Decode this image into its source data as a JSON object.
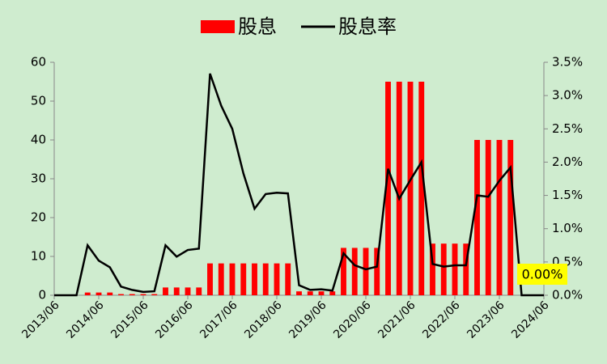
{
  "chart_data": {
    "type": "bar-line",
    "categories": [
      "2013/06",
      null,
      null,
      null,
      "2014/06",
      null,
      null,
      null,
      "2015/06",
      null,
      null,
      null,
      "2016/06",
      null,
      null,
      null,
      "2017/06",
      null,
      null,
      null,
      "2018/06",
      null,
      null,
      null,
      "2019/06",
      null,
      null,
      null,
      "2020/06",
      null,
      null,
      null,
      "2021/06",
      null,
      null,
      null,
      "2022/06",
      null,
      null,
      null,
      "2023/06",
      null,
      null,
      null,
      "2024/06"
    ],
    "series": [
      {
        "name": "股息",
        "type": "bar",
        "color": "#ff0000",
        "axis": "y",
        "values": [
          0,
          0,
          0,
          0.7,
          0.7,
          0.7,
          0.3,
          0.3,
          0.3,
          0.3,
          2,
          2,
          2,
          2,
          8.2,
          8.2,
          8.2,
          8.2,
          8.2,
          8.2,
          8.2,
          8.2,
          1,
          1,
          1,
          1,
          12.2,
          12.2,
          12.2,
          12.2,
          55,
          55,
          55,
          55,
          13.3,
          13.3,
          13.3,
          13.3,
          40,
          40,
          40,
          40,
          0,
          0,
          0
        ]
      },
      {
        "name": "股息率",
        "type": "line",
        "color": "#000000",
        "axis": "y2",
        "values": [
          0,
          0,
          0,
          0.75,
          0.52,
          0.42,
          0.13,
          0.08,
          0.05,
          0.06,
          0.75,
          0.58,
          0.68,
          0.7,
          3.33,
          2.85,
          2.5,
          1.83,
          1.3,
          1.52,
          1.54,
          1.53,
          0.15,
          0.08,
          0.09,
          0.07,
          0.63,
          0.45,
          0.39,
          0.43,
          1.9,
          1.45,
          1.73,
          2.0,
          0.47,
          0.43,
          0.45,
          0.45,
          1.5,
          1.48,
          1.72,
          1.92,
          0,
          0,
          0
        ],
        "value_labels": [
          null,
          null,
          null,
          null,
          null,
          null,
          null,
          null,
          null,
          null,
          null,
          null,
          null,
          null,
          null,
          null,
          null,
          null,
          null,
          null,
          null,
          null,
          null,
          null,
          null,
          null,
          null,
          null,
          null,
          null,
          null,
          null,
          null,
          null,
          null,
          null,
          null,
          null,
          null,
          null,
          null,
          null,
          null,
          null,
          "0.00%"
        ]
      }
    ],
    "ylim": [
      0,
      60
    ],
    "yticks": [
      0,
      10,
      20,
      30,
      40,
      50,
      60
    ],
    "y2lim": [
      0,
      3.5
    ],
    "y2ticks": [
      {
        "value": 0,
        "label": "0.0%"
      },
      {
        "value": 0.5,
        "label": "0.5%"
      },
      {
        "value": 1,
        "label": "1.0%"
      },
      {
        "value": 1.5,
        "label": "1.5%"
      },
      {
        "value": 2,
        "label": "2.0%"
      },
      {
        "value": 2.5,
        "label": "2.5%"
      },
      {
        "value": 3,
        "label": "3.0%"
      },
      {
        "value": 3.5,
        "label": "3.5%"
      }
    ],
    "legend": "top",
    "grid": false
  }
}
